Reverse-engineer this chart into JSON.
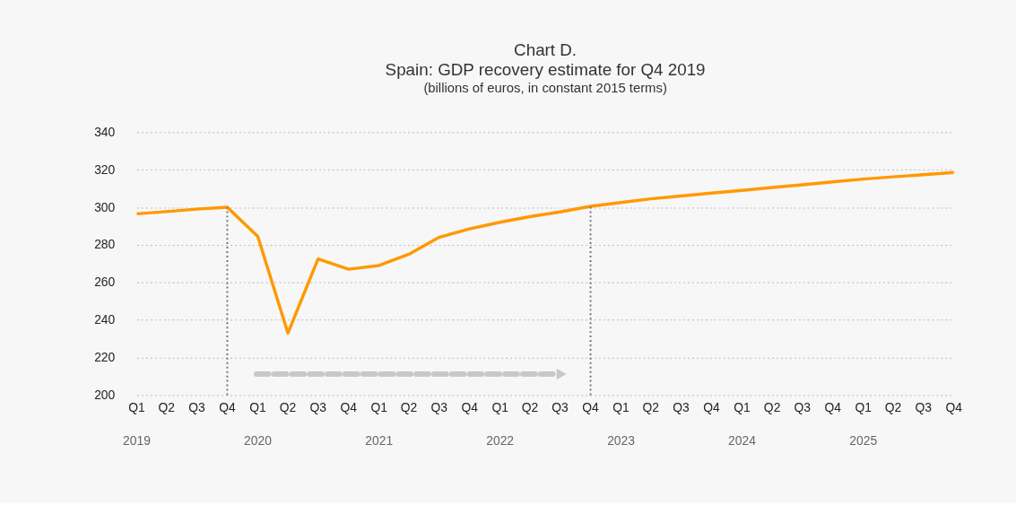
{
  "chart_data": {
    "type": "line",
    "title": "Chart D.\nSpain: GDP recovery estimate for Q4 2019",
    "subtitle": "(billions of euros, in constant 2015 terms)",
    "x": [
      "2019-01-01",
      "2019-04-01",
      "2019-07-01",
      "2019-10-01",
      "2020-01-01",
      "2020-04-01",
      "2020-07-01",
      "2020-10-01",
      "2021-01-01",
      "2021-04-01",
      "2021-07-01",
      "2021-10-01",
      "2022-01-01",
      "2022-04-01",
      "2022-07-01",
      "2022-10-01",
      "2023-01-01",
      "2023-04-01",
      "2023-07-01",
      "2023-10-01",
      "2024-01-01",
      "2024-04-01",
      "2024-07-01",
      "2024-10-01",
      "2025-01-01",
      "2025-04-01",
      "2025-07-01",
      "2025-10-01"
    ],
    "series": [
      {
        "color": "#ff9900",
        "values": [
          296.5,
          297.7,
          299,
          300,
          284.5,
          233,
          272.5,
          267,
          269,
          275,
          284,
          288.5,
          292,
          295,
          297.5,
          300.5,
          302.5,
          304.5,
          306,
          307.5,
          309,
          310.5,
          312,
          313.5,
          315,
          316.2,
          317.3,
          318.5
        ]
      }
    ],
    "xlim": [
      "2019-01-01",
      "2025-10-01"
    ],
    "xticks": [
      {
        "value": "2019-01-01",
        "label": "Q1"
      },
      {
        "value": "2019-04-01",
        "label": "Q2"
      },
      {
        "value": "2019-07-01",
        "label": "Q3"
      },
      {
        "value": "2019-10-01",
        "label": "Q4"
      },
      {
        "value": "2020-01-01",
        "label": "Q1"
      },
      {
        "value": "2020-04-01",
        "label": "Q2"
      },
      {
        "value": "2020-07-01",
        "label": "Q3"
      },
      {
        "value": "2020-10-01",
        "label": "Q4"
      },
      {
        "value": "2021-01-01",
        "label": "Q1"
      },
      {
        "value": "2021-04-01",
        "label": "Q2"
      },
      {
        "value": "2021-07-01",
        "label": "Q3"
      },
      {
        "value": "2021-10-01",
        "label": "Q4"
      },
      {
        "value": "2022-01-01",
        "label": "Q1"
      },
      {
        "value": "2022-04-01",
        "label": "Q2"
      },
      {
        "value": "2022-07-01",
        "label": "Q3"
      },
      {
        "value": "2022-10-01",
        "label": "Q4"
      },
      {
        "value": "2023-01-01",
        "label": "Q1"
      },
      {
        "value": "2023-04-01",
        "label": "Q2"
      },
      {
        "value": "2023-07-01",
        "label": "Q3"
      },
      {
        "value": "2023-10-01",
        "label": "Q4"
      },
      {
        "value": "2024-01-01",
        "label": "Q1"
      },
      {
        "value": "2024-04-01",
        "label": "Q2"
      },
      {
        "value": "2024-07-01",
        "label": "Q3"
      },
      {
        "value": "2024-10-01",
        "label": "Q4"
      },
      {
        "value": "2025-01-01",
        "label": "Q1"
      },
      {
        "value": "2025-04-01",
        "label": "Q2"
      },
      {
        "value": "2025-07-01",
        "label": "Q3"
      },
      {
        "value": "2025-10-01",
        "label": "Q4"
      }
    ],
    "ylim": [
      200,
      340
    ],
    "yticks": [
      200,
      220,
      240,
      260,
      280,
      300,
      320,
      340
    ],
    "grid": "y",
    "marker": "none",
    "line_style": "solid",
    "ref_lines": [
      {
        "axis": "x",
        "value": "2019-10-01",
        "color": "#777777",
        "line_style": "dotted"
      },
      {
        "axis": "x",
        "value": "2022-10-01",
        "color": "#777777",
        "line_style": "dotted"
      }
    ],
    "annotations": [
      "2019",
      "2020",
      "2021",
      "2022",
      "2023",
      "2024",
      "2025"
    ]
  }
}
